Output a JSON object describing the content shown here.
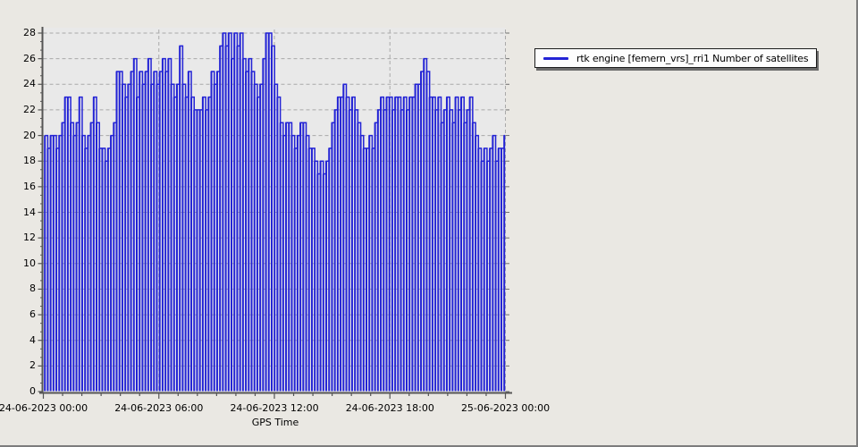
{
  "window": {
    "background_color": "#eae8e3",
    "plot_background_color": "#e9e9e9",
    "grid_color": "#a9a9a9",
    "axis_color": "#555555"
  },
  "legend": {
    "label": "rtk engine [femern_vrs]_rri1 Number of satellites",
    "swatch_color": "#2323d5"
  },
  "chart_data": {
    "type": "bar",
    "title": "",
    "xlabel": "GPS Time",
    "ylabel": "",
    "ylim": [
      0,
      28
    ],
    "y_tick_step": 2,
    "x_hours_span": 24,
    "x_tick_hours": [
      0,
      6,
      12,
      18,
      24
    ],
    "x_tick_labels": [
      "24-06-2023 00:00",
      "24-06-2023 06:00",
      "24-06-2023 12:00",
      "24-06-2023 18:00",
      "25-06-2023 00:00"
    ],
    "grid": true,
    "legend_position": "top-right",
    "sample_interval_minutes": 9,
    "series": [
      {
        "name": "rtk engine [femern_vrs]_rri1 Number of satellites",
        "color": "#2323d5",
        "values": [
          20,
          19,
          20,
          20,
          19,
          20,
          21,
          23,
          23,
          21,
          20,
          21,
          23,
          20,
          19,
          20,
          21,
          23,
          21,
          19,
          19,
          18,
          19,
          20,
          21,
          25,
          25,
          24,
          23,
          24,
          25,
          26,
          23,
          25,
          24,
          25,
          26,
          24,
          25,
          24,
          25,
          26,
          25,
          26,
          24,
          23,
          24,
          27,
          24,
          23,
          25,
          23,
          22,
          22,
          22,
          23,
          22,
          23,
          25,
          24,
          25,
          27,
          28,
          27,
          28,
          26,
          28,
          27,
          28,
          26,
          25,
          26,
          25,
          24,
          23,
          24,
          26,
          28,
          28,
          27,
          24,
          23,
          21,
          20,
          21,
          21,
          20,
          19,
          20,
          21,
          21,
          20,
          19,
          19,
          18,
          17,
          18,
          17,
          18,
          19,
          21,
          22,
          23,
          23,
          24,
          23,
          22,
          23,
          22,
          21,
          20,
          19,
          19,
          20,
          19,
          21,
          22,
          23,
          22,
          23,
          23,
          22,
          23,
          23,
          22,
          23,
          22,
          23,
          23,
          24,
          24,
          25,
          26,
          25,
          23,
          23,
          22,
          23,
          21,
          22,
          23,
          22,
          21,
          23,
          22,
          23,
          21,
          22,
          23,
          21,
          20,
          19,
          18,
          19,
          18,
          19,
          20,
          18,
          19,
          19,
          20
        ]
      }
    ]
  }
}
